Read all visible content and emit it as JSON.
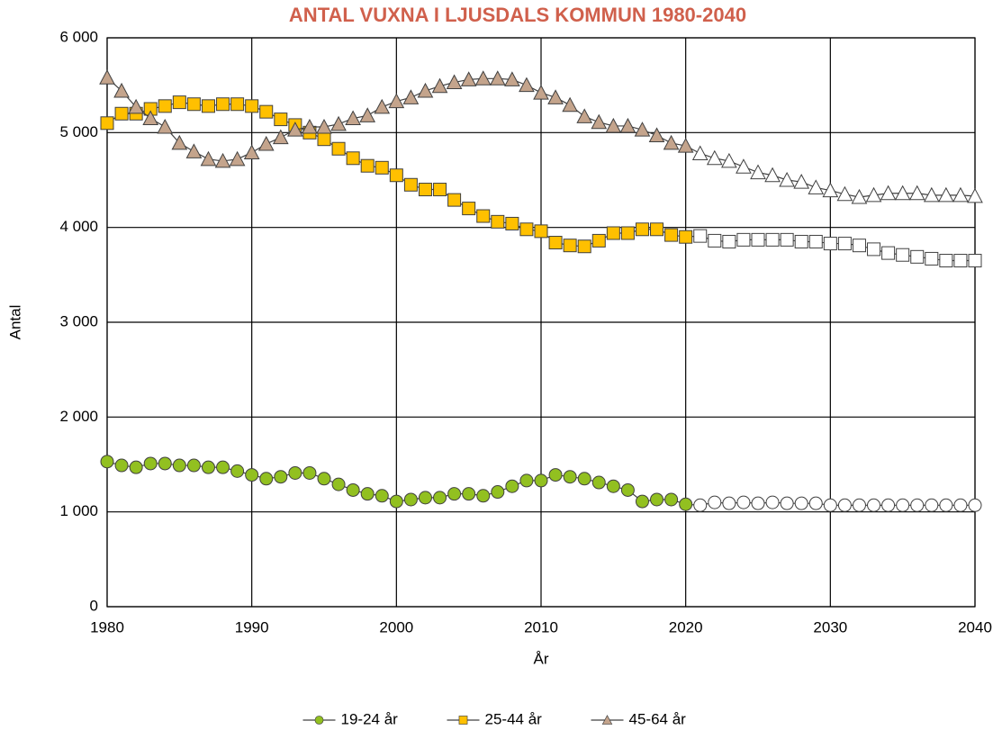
{
  "chart_data": {
    "type": "line",
    "title": "ANTAL VUXNA I LJUSDALS KOMMUN 1980-2040",
    "x_label": "År",
    "y_label": "Antal",
    "x": [
      1980,
      1981,
      1982,
      1983,
      1984,
      1985,
      1986,
      1987,
      1988,
      1989,
      1990,
      1991,
      1992,
      1993,
      1994,
      1995,
      1996,
      1997,
      1998,
      1999,
      2000,
      2001,
      2002,
      2003,
      2004,
      2005,
      2006,
      2007,
      2008,
      2009,
      2010,
      2011,
      2012,
      2013,
      2014,
      2015,
      2016,
      2017,
      2018,
      2019,
      2020,
      2021,
      2022,
      2023,
      2024,
      2025,
      2026,
      2027,
      2028,
      2029,
      2030,
      2031,
      2032,
      2033,
      2034,
      2035,
      2036,
      2037,
      2038,
      2039,
      2040
    ],
    "forecast_from": 2021,
    "forecast_fill": "#ffffff",
    "series": [
      {
        "name": "19-24 år",
        "color": "#92c020",
        "marker": "circle",
        "values": [
          1530,
          1490,
          1470,
          1510,
          1510,
          1490,
          1490,
          1470,
          1470,
          1430,
          1390,
          1350,
          1370,
          1410,
          1410,
          1350,
          1290,
          1230,
          1190,
          1170,
          1110,
          1130,
          1150,
          1150,
          1190,
          1190,
          1170,
          1210,
          1270,
          1330,
          1330,
          1390,
          1370,
          1350,
          1310,
          1270,
          1230,
          1110,
          1130,
          1130,
          1080,
          1070,
          1100,
          1090,
          1100,
          1090,
          1100,
          1090,
          1090,
          1090,
          1070,
          1070,
          1070,
          1070,
          1070,
          1070,
          1070,
          1070,
          1070,
          1070,
          1070
        ]
      },
      {
        "name": "25-44 år",
        "color": "#ffc000",
        "marker": "square",
        "values": [
          5100,
          5200,
          5200,
          5250,
          5280,
          5320,
          5300,
          5280,
          5300,
          5300,
          5280,
          5220,
          5140,
          5080,
          5000,
          4930,
          4830,
          4730,
          4650,
          4630,
          4550,
          4450,
          4400,
          4400,
          4290,
          4200,
          4120,
          4060,
          4040,
          3980,
          3960,
          3840,
          3810,
          3800,
          3860,
          3940,
          3940,
          3980,
          3980,
          3920,
          3900,
          3910,
          3860,
          3850,
          3870,
          3870,
          3870,
          3870,
          3850,
          3850,
          3830,
          3830,
          3810,
          3770,
          3730,
          3710,
          3690,
          3670,
          3650,
          3650,
          3650
        ]
      },
      {
        "name": "45-64 år",
        "color": "#c4a48c",
        "marker": "triangle",
        "values": [
          5580,
          5440,
          5270,
          5150,
          5060,
          4890,
          4800,
          4720,
          4700,
          4720,
          4790,
          4880,
          4950,
          5030,
          5060,
          5060,
          5090,
          5150,
          5180,
          5270,
          5330,
          5370,
          5440,
          5490,
          5530,
          5560,
          5570,
          5570,
          5560,
          5500,
          5420,
          5370,
          5290,
          5170,
          5110,
          5070,
          5070,
          5030,
          4970,
          4890,
          4860,
          4780,
          4730,
          4700,
          4640,
          4580,
          4550,
          4500,
          4480,
          4420,
          4390,
          4350,
          4320,
          4340,
          4360,
          4360,
          4360,
          4340,
          4340,
          4340,
          4330
        ]
      }
    ],
    "xlim": [
      1980,
      2040
    ],
    "xticks": [
      1980,
      1990,
      2000,
      2010,
      2020,
      2030,
      2040
    ],
    "ylim": [
      0,
      6000
    ],
    "yticks": [
      0,
      {
        "value": 1000,
        "label": "1 000"
      },
      {
        "value": 2000,
        "label": "2 000"
      },
      {
        "value": 3000,
        "label": "3 000"
      },
      {
        "value": 4000,
        "label": "4 000"
      },
      {
        "value": 5000,
        "label": "5 000"
      },
      {
        "value": 6000,
        "label": "6 000"
      }
    ],
    "grid": true,
    "legend": "bottom"
  }
}
